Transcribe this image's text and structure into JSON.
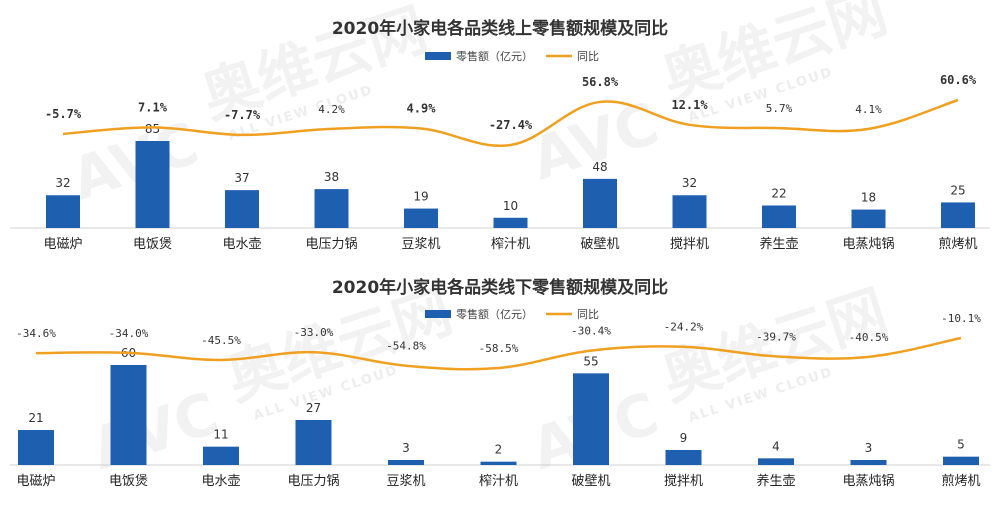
{
  "chart_data": [
    {
      "type": "bar",
      "title": "2020年小家电各品类线上零售额规模及同比",
      "categories": [
        "电磁炉",
        "电饭煲",
        "电水壶",
        "电压力锅",
        "豆浆机",
        "榨汁机",
        "破壁机",
        "搅拌机",
        "养生壶",
        "电蒸炖锅",
        "煎烤机"
      ],
      "series": [
        {
          "name": "零售额（亿元）",
          "kind": "bar",
          "values": [
            32,
            85,
            37,
            38,
            19,
            10,
            48,
            32,
            22,
            18,
            25
          ],
          "color": "#1f5fb0"
        },
        {
          "name": "同比",
          "kind": "line",
          "values": [
            -5.7,
            7.1,
            -7.7,
            4.2,
            4.9,
            -27.4,
            56.8,
            12.1,
            5.7,
            4.1,
            60.6
          ],
          "labels": [
            "-5.7%",
            "7.1%",
            "-7.7%",
            "4.2%",
            "4.9%",
            "-27.4%",
            "56.8%",
            "12.1%",
            "5.7%",
            "4.1%",
            "60.6%"
          ],
          "bold": [
            true,
            true,
            true,
            false,
            true,
            true,
            true,
            true,
            false,
            false,
            true
          ],
          "color": "#f0a020"
        }
      ]
    },
    {
      "type": "bar",
      "title": "2020年小家电各品类线下零售额规模及同比",
      "categories": [
        "电磁炉",
        "电饭煲",
        "电水壶",
        "电压力锅",
        "豆浆机",
        "榨汁机",
        "破壁机",
        "搅拌机",
        "养生壶",
        "电蒸炖锅",
        "煎烤机"
      ],
      "series": [
        {
          "name": "零售额（亿元）",
          "kind": "bar",
          "values": [
            21,
            60,
            11,
            27,
            3,
            2,
            55,
            9,
            4,
            3,
            5
          ],
          "color": "#1f5fb0"
        },
        {
          "name": "同比",
          "kind": "line",
          "values": [
            -34.6,
            -34.0,
            -45.5,
            -33.0,
            -54.8,
            -58.5,
            -30.4,
            -24.2,
            -39.7,
            -40.5,
            -10.1
          ],
          "labels": [
            "-34.6%",
            "-34.0%",
            "-45.5%",
            "-33.0%",
            "-54.8%",
            "-58.5%",
            "-30.4%",
            "-24.2%",
            "-39.7%",
            "-40.5%",
            "-10.1%"
          ],
          "bold": [
            false,
            false,
            false,
            false,
            false,
            false,
            false,
            false,
            false,
            false,
            false
          ],
          "color": "#f0a020"
        }
      ]
    }
  ],
  "watermark": {
    "brand": "奥维云网",
    "sub": "ALL VIEW CLOUD",
    "logo": "AVC"
  }
}
